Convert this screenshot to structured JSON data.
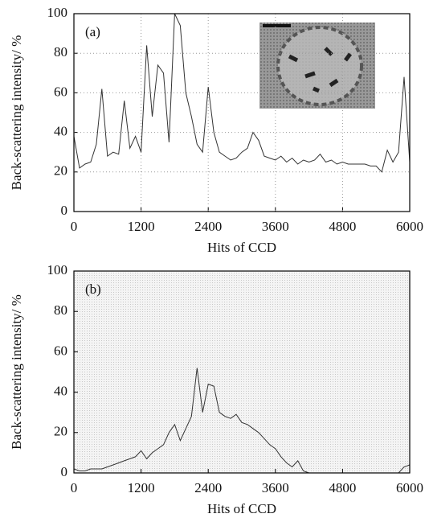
{
  "chart_data": [
    {
      "type": "line",
      "label": "(a)",
      "xlabel": "Hits of CCD",
      "ylabel": "Back-scattering intensity/ %",
      "xlim": [
        0,
        6000
      ],
      "ylim": [
        0,
        100
      ],
      "xticks": [
        0,
        1200,
        2400,
        3600,
        4800,
        6000
      ],
      "yticks": [
        0,
        20,
        40,
        60,
        80,
        100
      ],
      "grid": true,
      "color": "#333333",
      "x": [
        0,
        100,
        200,
        300,
        400,
        500,
        600,
        700,
        800,
        900,
        1000,
        1100,
        1200,
        1300,
        1400,
        1500,
        1600,
        1700,
        1800,
        1900,
        2000,
        2100,
        2200,
        2300,
        2400,
        2500,
        2600,
        2700,
        2800,
        2900,
        3000,
        3100,
        3200,
        3300,
        3400,
        3500,
        3600,
        3700,
        3800,
        3900,
        4000,
        4100,
        4200,
        4300,
        4400,
        4500,
        4600,
        4700,
        4800,
        4900,
        5000,
        5100,
        5200,
        5300,
        5400,
        5500,
        5600,
        5700,
        5800,
        5900,
        6000
      ],
      "values": [
        38,
        22,
        24,
        25,
        34,
        62,
        28,
        30,
        29,
        56,
        32,
        38,
        30,
        84,
        48,
        74,
        70,
        35,
        100,
        94,
        60,
        48,
        34,
        30,
        63,
        40,
        30,
        28,
        26,
        27,
        30,
        32,
        40,
        36,
        28,
        27,
        26,
        28,
        25,
        27,
        24,
        26,
        25,
        26,
        29,
        25,
        26,
        24,
        25,
        24,
        24,
        24,
        24,
        23,
        23,
        20,
        31,
        25,
        30,
        68,
        25
      ]
    },
    {
      "type": "line",
      "label": "(b)",
      "xlabel": "Hits of CCD",
      "ylabel": "Back-scattering intensity/ %",
      "xlim": [
        0,
        6000
      ],
      "ylim": [
        0,
        100
      ],
      "xticks": [
        0,
        1200,
        2400,
        3600,
        4800,
        6000
      ],
      "yticks": [
        0,
        20,
        40,
        60,
        80,
        100
      ],
      "grid": false,
      "color": "#333333",
      "x": [
        0,
        100,
        200,
        300,
        400,
        500,
        600,
        700,
        800,
        900,
        1000,
        1100,
        1200,
        1300,
        1400,
        1500,
        1600,
        1700,
        1800,
        1900,
        2000,
        2100,
        2200,
        2300,
        2400,
        2500,
        2600,
        2700,
        2800,
        2900,
        3000,
        3100,
        3200,
        3300,
        3400,
        3500,
        3600,
        3700,
        3800,
        3900,
        4000,
        4100,
        4200,
        4300,
        4400,
        4500,
        4600,
        4700,
        4800,
        4900,
        5000,
        5100,
        5200,
        5300,
        5400,
        5500,
        5600,
        5700,
        5800,
        5900,
        6000
      ],
      "values": [
        2,
        1,
        1,
        2,
        2,
        2,
        3,
        4,
        5,
        6,
        7,
        8,
        11,
        7,
        10,
        12,
        14,
        20,
        24,
        16,
        22,
        28,
        52,
        30,
        44,
        43,
        30,
        28,
        27,
        29,
        25,
        24,
        22,
        20,
        17,
        14,
        12,
        8,
        5,
        3,
        6,
        1,
        0,
        0,
        0,
        0,
        0,
        0,
        0,
        0,
        0,
        0,
        0,
        0,
        0,
        0,
        0,
        0,
        0,
        3,
        4
      ]
    }
  ]
}
